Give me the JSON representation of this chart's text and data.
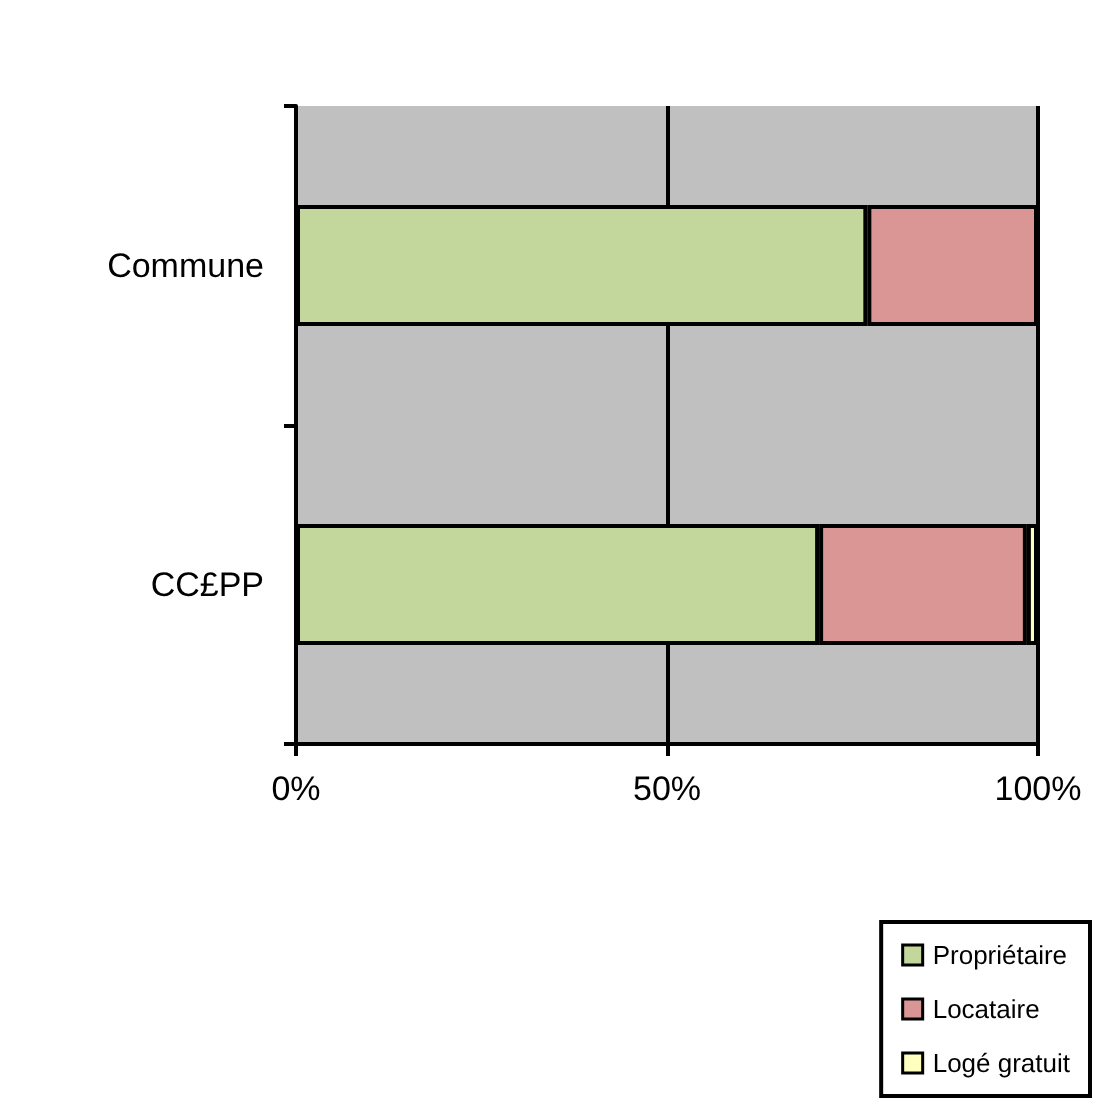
{
  "chart_data": {
    "type": "bar",
    "orientation": "horizontal",
    "stacked": true,
    "categories": [
      "Commune",
      "CC£PP"
    ],
    "series": [
      {
        "name": "Propriétaire",
        "color": "#c3d69b",
        "values": [
          77,
          70.5
        ]
      },
      {
        "name": "Locataire",
        "color": "#d99694",
        "values": [
          23,
          28
        ]
      },
      {
        "name": "Logé gratuit",
        "color": "#ffffc0",
        "values": [
          null,
          1.5
        ]
      }
    ],
    "xlim": [
      0,
      100
    ],
    "xticks": [
      {
        "value": 0,
        "label": "0%"
      },
      {
        "value": 50,
        "label": "50%"
      },
      {
        "value": 100,
        "label": "100%"
      }
    ],
    "grid": "x",
    "legend": "bottom right"
  }
}
